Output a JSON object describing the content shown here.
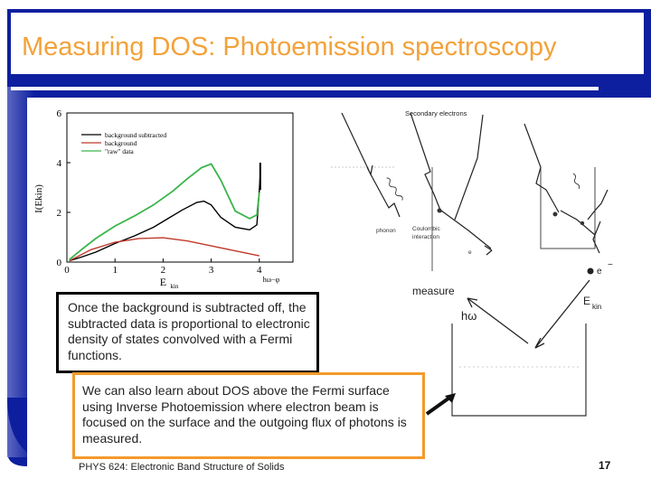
{
  "slide": {
    "title": "Measuring DOS: Photoemission spectroscopy",
    "textbox1": "Once the background is subtracted off, the subtracted data is proportional to electronic density of states convolved with a Fermi functions.",
    "textbox2": "We can also learn about DOS above the Fermi surface using Inverse Photoemission where electron beam is focused on the surface and the outgoing flux of photons is measured.",
    "footer": "PHYS 624: Electronic Band Structure of Solids",
    "page_number": "17",
    "colors": {
      "frame": "#0d1f9e",
      "title": "#f2a23a",
      "textbox2_border": "#f39a2a"
    }
  },
  "plot": {
    "ylabel": "I(E",
    "ylabel_sub": "kin",
    "xlabel": "E",
    "xlabel_sub": "kin",
    "x_extra_label": "hω−φ",
    "x_ticks": [
      "0",
      "1",
      "2",
      "3",
      "4"
    ],
    "y_ticks": [
      "0",
      "2",
      "4",
      "6"
    ],
    "legend": [
      "background subtracted",
      "background",
      "\"raw\" data"
    ]
  },
  "chart_data": {
    "type": "line",
    "title": "",
    "xlabel": "Ekin",
    "ylabel": "I(Ekin)",
    "xlim": [
      0,
      4.7
    ],
    "ylim": [
      0,
      6
    ],
    "series": [
      {
        "name": "background subtracted",
        "color": "#000000",
        "x": [
          0.05,
          0.3,
          0.6,
          1.0,
          1.4,
          1.8,
          2.1,
          2.4,
          2.7,
          2.85,
          3.0,
          3.2,
          3.5,
          3.8,
          3.95,
          4.0,
          4.02
        ],
        "y": [
          0.05,
          0.2,
          0.4,
          0.75,
          1.05,
          1.4,
          1.75,
          2.1,
          2.4,
          2.45,
          2.3,
          1.8,
          1.4,
          1.3,
          1.5,
          2.9,
          3.5
        ]
      },
      {
        "name": "background",
        "color": "#c0392b",
        "x": [
          0.05,
          0.5,
          1.0,
          1.5,
          2.0,
          2.5,
          3.0,
          3.5,
          4.0
        ],
        "y": [
          0.05,
          0.5,
          0.8,
          0.95,
          0.98,
          0.85,
          0.65,
          0.45,
          0.25
        ]
      },
      {
        "name": "\"raw\" data",
        "color": "#39b54a",
        "x": [
          0.05,
          0.3,
          0.6,
          1.0,
          1.4,
          1.8,
          2.2,
          2.5,
          2.8,
          3.0,
          3.2,
          3.5,
          3.8,
          3.95,
          4.0
        ],
        "y": [
          0.1,
          0.5,
          0.95,
          1.45,
          1.85,
          2.3,
          2.85,
          3.35,
          3.8,
          3.95,
          3.3,
          2.05,
          1.75,
          1.9,
          2.8
        ]
      }
    ]
  },
  "diagram_right": {
    "secondary_label": "Secondary electrons",
    "phonon_label": "phonon",
    "coulomb_label": "Coulombic interaction",
    "e_label": "e",
    "e_minus_label": "e",
    "measure_label": "measure",
    "hw_label": "hω",
    "ekin_label": "E",
    "ekin_sub": "kin"
  }
}
